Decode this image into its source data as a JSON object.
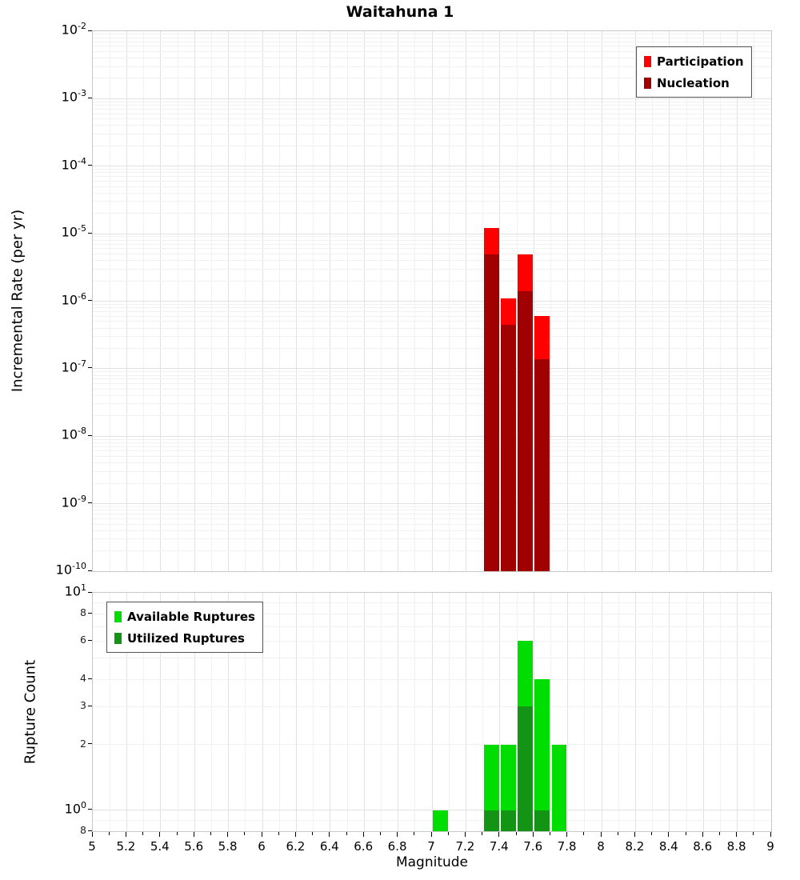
{
  "title": "Waitahuna 1",
  "x_axis": {
    "label": "Magnitude",
    "min": 5,
    "max": 9,
    "minor_step": 0.1,
    "ticks": [
      {
        "value": 5,
        "label": "5"
      },
      {
        "value": 5.2,
        "label": "5.2"
      },
      {
        "value": 5.4,
        "label": "5.4"
      },
      {
        "value": 5.6,
        "label": "5.6"
      },
      {
        "value": 5.8,
        "label": "5.8"
      },
      {
        "value": 6,
        "label": "6"
      },
      {
        "value": 6.2,
        "label": "6.2"
      },
      {
        "value": 6.4,
        "label": "6.4"
      },
      {
        "value": 6.6,
        "label": "6.6"
      },
      {
        "value": 6.8,
        "label": "6.8"
      },
      {
        "value": 7,
        "label": "7"
      },
      {
        "value": 7.2,
        "label": "7.2"
      },
      {
        "value": 7.4,
        "label": "7.4"
      },
      {
        "value": 7.6,
        "label": "7.6"
      },
      {
        "value": 7.8,
        "label": "7.8"
      },
      {
        "value": 8,
        "label": "8"
      },
      {
        "value": 8.2,
        "label": "8.2"
      },
      {
        "value": 8.4,
        "label": "8.4"
      },
      {
        "value": 8.6,
        "label": "8.6"
      },
      {
        "value": 8.8,
        "label": "8.8"
      },
      {
        "value": 9,
        "label": "9"
      }
    ]
  },
  "y_axis_top": {
    "ticks": [
      {
        "value": 0.01,
        "label_base": "10",
        "label_exp": "-2"
      },
      {
        "value": 0.001,
        "label_base": "10",
        "label_exp": "-3"
      },
      {
        "value": 0.0001,
        "label_base": "10",
        "label_exp": "-4"
      },
      {
        "value": 1e-05,
        "label_base": "10",
        "label_exp": "-5"
      },
      {
        "value": 1e-06,
        "label_base": "10",
        "label_exp": "-6"
      },
      {
        "value": 1e-07,
        "label_base": "10",
        "label_exp": "-7"
      },
      {
        "value": 1e-08,
        "label_base": "10",
        "label_exp": "-8"
      },
      {
        "value": 1e-09,
        "label_base": "10",
        "label_exp": "-9"
      },
      {
        "value": 1e-10,
        "label_base": "10",
        "label_exp": "-10"
      }
    ]
  },
  "y_axis_bottom": {
    "ticks": [
      {
        "value": 10,
        "label_base": "10",
        "label_exp": "1"
      },
      {
        "value": 8,
        "label": "8"
      },
      {
        "value": 6,
        "label": "6"
      },
      {
        "value": 4,
        "label": "4"
      },
      {
        "value": 3,
        "label": "3"
      },
      {
        "value": 2,
        "label": "2"
      },
      {
        "value": 1,
        "label_base": "10",
        "label_exp": "0"
      },
      {
        "value": 0.8,
        "label": "8"
      }
    ]
  },
  "chart_data": [
    {
      "type": "bar",
      "title": "Waitahuna 1",
      "xlabel": "Magnitude",
      "ylabel": "Incremental Rate (per yr)",
      "x_range": [
        5,
        9
      ],
      "y_scale": "log",
      "y_range": [
        1e-10,
        0.01
      ],
      "grid": true,
      "bar_width": 0.1,
      "legend_position": "top-right",
      "categories": [
        7.35,
        7.45,
        7.55,
        7.65
      ],
      "series": [
        {
          "name": "Participation",
          "color": "#ff0000",
          "values": [
            1.2e-05,
            1.1e-06,
            5e-06,
            6e-07
          ]
        },
        {
          "name": "Nucleation",
          "color": "#a00000",
          "values": [
            5e-06,
            4.5e-07,
            1.4e-06,
            1.4e-07
          ]
        }
      ]
    },
    {
      "type": "bar",
      "title": "",
      "xlabel": "Magnitude",
      "ylabel": "Rupture Count",
      "x_range": [
        5,
        9
      ],
      "y_scale": "log",
      "y_range": [
        0.8,
        10
      ],
      "grid": true,
      "bar_width": 0.1,
      "legend_position": "top-left",
      "categories": [
        7.05,
        7.35,
        7.45,
        7.55,
        7.65,
        7.75
      ],
      "series": [
        {
          "name": "Available Ruptures",
          "color": "#00dd00",
          "values": [
            1,
            2,
            2,
            6,
            4,
            2
          ]
        },
        {
          "name": "Utilized Ruptures",
          "color": "#149414",
          "values": [
            0,
            1,
            1,
            3,
            1,
            0
          ]
        }
      ]
    }
  ]
}
